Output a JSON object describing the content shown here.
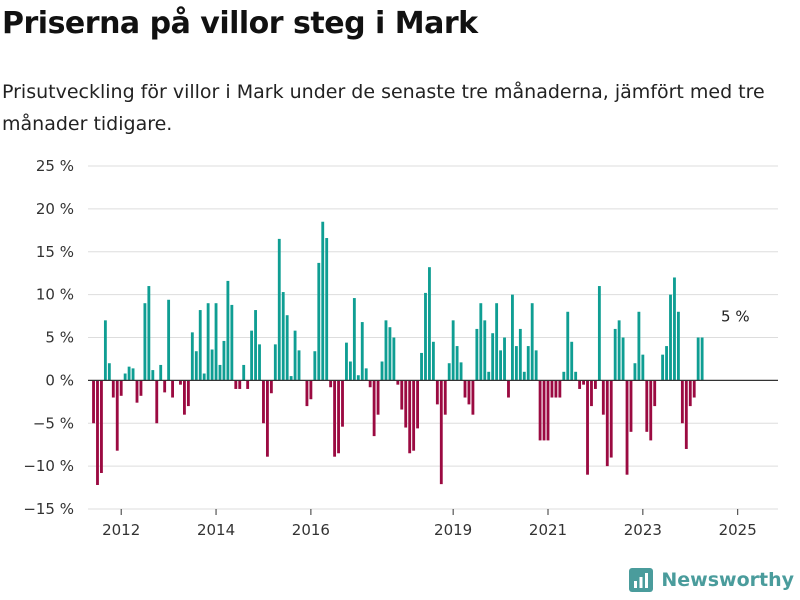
{
  "title": "Priserna på villor steg i Mark",
  "subtitle": "Prisutveckling för villor i Mark under de senaste tre månaderna, jämfört med tre månader tidigare.",
  "brand": {
    "name": "Newsworthy",
    "icon": "newsworthy-logo-icon"
  },
  "colors": {
    "positive": "#0f9e93",
    "negative": "#9b0a41",
    "grid": "#dddddd",
    "zero_line": "#333333",
    "brand": "#4a9c9c"
  },
  "chart_data": {
    "type": "bar",
    "x_label": "",
    "y_label": "",
    "ylim": [
      -15,
      25
    ],
    "y_ticks": [
      {
        "value": -15,
        "label": "−15 %"
      },
      {
        "value": -10,
        "label": "−10 %"
      },
      {
        "value": -5,
        "label": "−5 %"
      },
      {
        "value": 0,
        "label": "0 %"
      },
      {
        "value": 5,
        "label": "5 %"
      },
      {
        "value": 10,
        "label": "10 %"
      },
      {
        "value": 15,
        "label": "15 %"
      },
      {
        "value": 20,
        "label": "20 %"
      },
      {
        "value": 25,
        "label": "25 %"
      }
    ],
    "x_ticks": [
      {
        "value": 2012.25,
        "label": "2012"
      },
      {
        "value": 2014.25,
        "label": "2014"
      },
      {
        "value": 2016.25,
        "label": "2016"
      },
      {
        "value": 2019.25,
        "label": "2019"
      },
      {
        "value": 2021.25,
        "label": "2021"
      },
      {
        "value": 2023.25,
        "label": "2023"
      },
      {
        "value": 2025.25,
        "label": "2025"
      }
    ],
    "xlim": [
      2011.55,
      2026.1
    ],
    "grid": true,
    "start": "2011-09",
    "values": [
      -5,
      -12.2,
      -10.8,
      7,
      2,
      -2,
      -8.2,
      -1.8,
      0.8,
      1.6,
      1.4,
      -2.6,
      -1.8,
      9,
      11,
      1.2,
      -5,
      1.8,
      -1.4,
      9.4,
      -2,
      0,
      -0.5,
      -4,
      -3,
      5.6,
      3.4,
      8.2,
      0.8,
      9,
      3.6,
      9,
      1.8,
      4.6,
      11.6,
      8.8,
      -1,
      -1,
      1.8,
      -1,
      5.8,
      8.2,
      4.2,
      -5,
      -8.9,
      -1.5,
      4.2,
      16.5,
      10.3,
      7.6,
      0.5,
      5.8,
      3.5,
      0,
      -3,
      -2.2,
      3.4,
      13.7,
      18.5,
      16.6,
      -0.8,
      -8.9,
      -8.5,
      -5.4,
      4.4,
      2.2,
      9.6,
      0.6,
      6.8,
      1.4,
      -0.8,
      -6.5,
      -4,
      2.2,
      7,
      6.2,
      5,
      -0.5,
      -3.4,
      -5.5,
      -8.5,
      -8.2,
      -5.6,
      3.2,
      10.2,
      13.2,
      4.5,
      -2.8,
      -12.1,
      -4,
      2,
      7,
      4,
      2.1,
      -2,
      -2.8,
      -4,
      6,
      9,
      7,
      1,
      5.5,
      9,
      3.5,
      5,
      -2,
      10,
      4,
      6,
      1,
      4,
      9,
      3.5,
      -7,
      -7,
      -7,
      -2,
      -2,
      -2,
      1,
      8,
      4.5,
      1,
      -1,
      -0.5,
      -11,
      -3,
      -1,
      11,
      -4,
      -10,
      -9,
      6,
      7,
      5,
      -11,
      -6,
      2,
      8,
      3,
      -6,
      -7,
      -3,
      0,
      3,
      4,
      10,
      12,
      8,
      -5,
      -8,
      -3,
      -2,
      5,
      5
    ],
    "annotation": {
      "x": 2025.2,
      "value": 5,
      "label": "5 %"
    }
  }
}
